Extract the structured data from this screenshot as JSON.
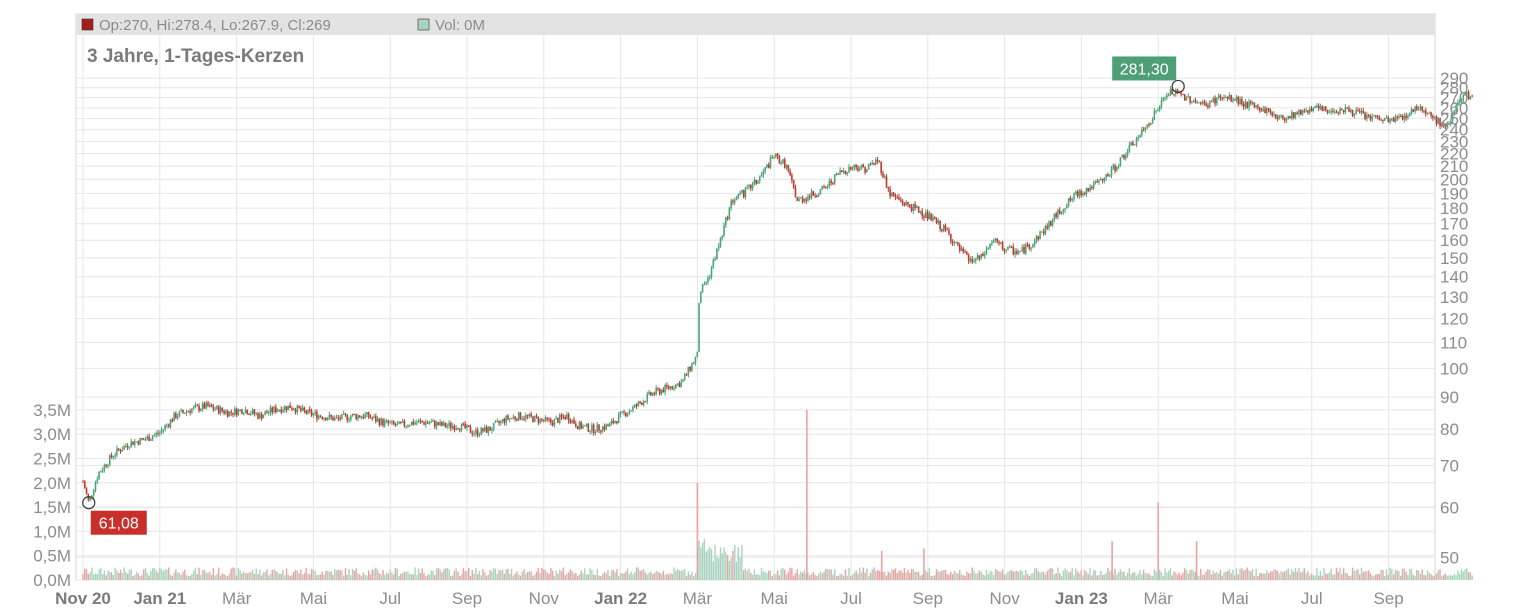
{
  "header": {
    "ohlc_label": "Op:270, Hi:278.4, Lo:267.9, Cl:269",
    "vol_label": "Vol: 0M",
    "title": "3 Jahre, 1-Tages-Kerzen"
  },
  "colors": {
    "up": "#4aa57a",
    "down": "#c0392b",
    "vol_up": "#a9d4bf",
    "vol_down": "#e9a3a3",
    "header_bg": "#e3e3e3",
    "grid": "#e6e6e6",
    "low_badge": "#c9302c",
    "high_badge": "#4e9e76"
  },
  "markers": {
    "low": {
      "label": "61,08",
      "value": 61.08,
      "month_index": 0.15
    },
    "high": {
      "label": "281,30",
      "value": 281.3,
      "month_index": 28.0
    }
  },
  "chart_data": {
    "type": "candlestick",
    "title": "3 Jahre, 1-Tages-Kerzen",
    "price_axis": {
      "scale": "log",
      "ticks": [
        50,
        60,
        70,
        80,
        90,
        100,
        110,
        120,
        130,
        140,
        150,
        160,
        170,
        180,
        190,
        200,
        210,
        220,
        230,
        240,
        250,
        260,
        270,
        280,
        290
      ]
    },
    "volume_axis": {
      "ticks": [
        "0,0M",
        "0,5M",
        "1,0M",
        "1,5M",
        "2,0M",
        "2,5M",
        "3,0M",
        "3,5M"
      ],
      "values": [
        0,
        0.5,
        1.0,
        1.5,
        2.0,
        2.5,
        3.0,
        3.5
      ]
    },
    "x_ticks": [
      {
        "label": "Nov 20",
        "month_index": 0,
        "bold": true
      },
      {
        "label": "Jan 21",
        "month_index": 2,
        "bold": true
      },
      {
        "label": "Mär",
        "month_index": 4,
        "bold": false
      },
      {
        "label": "Mai",
        "month_index": 6,
        "bold": false
      },
      {
        "label": "Jul",
        "month_index": 8,
        "bold": false
      },
      {
        "label": "Sep",
        "month_index": 10,
        "bold": false
      },
      {
        "label": "Nov",
        "month_index": 12,
        "bold": false
      },
      {
        "label": "Jan 22",
        "month_index": 14,
        "bold": true
      },
      {
        "label": "Mär",
        "month_index": 16,
        "bold": false
      },
      {
        "label": "Mai",
        "month_index": 18,
        "bold": false
      },
      {
        "label": "Jul",
        "month_index": 20,
        "bold": false
      },
      {
        "label": "Sep",
        "month_index": 22,
        "bold": false
      },
      {
        "label": "Nov",
        "month_index": 24,
        "bold": false
      },
      {
        "label": "Jan 23",
        "month_index": 26,
        "bold": true
      },
      {
        "label": "Mär",
        "month_index": 28,
        "bold": false
      },
      {
        "label": "Mai",
        "month_index": 30,
        "bold": false
      },
      {
        "label": "Jul",
        "month_index": 32,
        "bold": false
      },
      {
        "label": "Sep",
        "month_index": 34,
        "bold": false
      }
    ],
    "price_path": [
      [
        0.0,
        66
      ],
      [
        0.15,
        61.08
      ],
      [
        0.4,
        68
      ],
      [
        0.8,
        73
      ],
      [
        1.2,
        76
      ],
      [
        1.6,
        77
      ],
      [
        2.0,
        79
      ],
      [
        2.4,
        84
      ],
      [
        2.8,
        86
      ],
      [
        3.2,
        87
      ],
      [
        3.5,
        86
      ],
      [
        3.8,
        85
      ],
      [
        4.2,
        86
      ],
      [
        4.6,
        84
      ],
      [
        5.0,
        86
      ],
      [
        5.4,
        87
      ],
      [
        5.8,
        85
      ],
      [
        6.2,
        84
      ],
      [
        6.6,
        83
      ],
      [
        7.0,
        84
      ],
      [
        7.4,
        84
      ],
      [
        7.8,
        82
      ],
      [
        8.2,
        81
      ],
      [
        8.6,
        82
      ],
      [
        9.0,
        82
      ],
      [
        9.4,
        81
      ],
      [
        9.8,
        81
      ],
      [
        10.2,
        79
      ],
      [
        10.6,
        80
      ],
      [
        11.0,
        83
      ],
      [
        11.4,
        84
      ],
      [
        11.8,
        83
      ],
      [
        12.2,
        82
      ],
      [
        12.6,
        84
      ],
      [
        12.9,
        81
      ],
      [
        13.3,
        80
      ],
      [
        13.7,
        81
      ],
      [
        14.0,
        84
      ],
      [
        14.4,
        87
      ],
      [
        14.8,
        91
      ],
      [
        15.2,
        93
      ],
      [
        15.6,
        95
      ],
      [
        15.8,
        100
      ],
      [
        16.0,
        105
      ],
      [
        16.05,
        132
      ],
      [
        16.3,
        140
      ],
      [
        16.6,
        160
      ],
      [
        16.9,
        185
      ],
      [
        17.2,
        190
      ],
      [
        17.6,
        200
      ],
      [
        18.0,
        218
      ],
      [
        18.3,
        211
      ],
      [
        18.6,
        185
      ],
      [
        18.9,
        188
      ],
      [
        19.3,
        193
      ],
      [
        19.7,
        205
      ],
      [
        20.1,
        210
      ],
      [
        20.4,
        208
      ],
      [
        20.7,
        215
      ],
      [
        21.0,
        190
      ],
      [
        21.4,
        183
      ],
      [
        21.8,
        178
      ],
      [
        22.2,
        171
      ],
      [
        22.5,
        165
      ],
      [
        22.8,
        155
      ],
      [
        23.1,
        148
      ],
      [
        23.4,
        150
      ],
      [
        23.7,
        160
      ],
      [
        24.0,
        155
      ],
      [
        24.4,
        153
      ],
      [
        24.7,
        158
      ],
      [
        25.1,
        168
      ],
      [
        25.5,
        180
      ],
      [
        25.9,
        190
      ],
      [
        26.3,
        195
      ],
      [
        26.6,
        200
      ],
      [
        26.9,
        210
      ],
      [
        27.2,
        222
      ],
      [
        27.6,
        238
      ],
      [
        28.0,
        260
      ],
      [
        28.3,
        276
      ],
      [
        28.6,
        272
      ],
      [
        28.9,
        268
      ],
      [
        29.2,
        262
      ],
      [
        29.6,
        270
      ],
      [
        30.0,
        268
      ],
      [
        30.4,
        262
      ],
      [
        30.8,
        258
      ],
      [
        31.2,
        250
      ],
      [
        31.6,
        255
      ],
      [
        32.0,
        260
      ],
      [
        32.4,
        257
      ],
      [
        32.8,
        259
      ],
      [
        33.2,
        255
      ],
      [
        33.6,
        250
      ],
      [
        34.0,
        248
      ],
      [
        34.4,
        252
      ],
      [
        34.8,
        262
      ],
      [
        35.2,
        250
      ],
      [
        35.5,
        240
      ],
      [
        35.7,
        258
      ],
      [
        36.0,
        272
      ],
      [
        36.2,
        269
      ]
    ],
    "volume_spikes": [
      {
        "month_index": 16.0,
        "value": 2.0
      },
      {
        "month_index": 18.85,
        "value": 3.5
      },
      {
        "month_index": 28.0,
        "value": 1.6
      },
      {
        "month_index": 26.8,
        "value": 0.8
      },
      {
        "month_index": 29.0,
        "value": 0.8
      },
      {
        "month_index": 20.8,
        "value": 0.6
      },
      {
        "month_index": 21.9,
        "value": 0.65
      }
    ]
  }
}
